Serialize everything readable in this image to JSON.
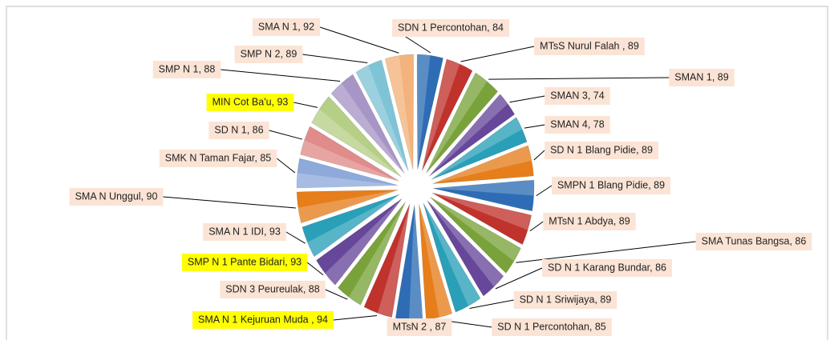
{
  "chart_data": {
    "type": "pie",
    "values": [
      84,
      89,
      89,
      74,
      78,
      89,
      89,
      89,
      86,
      86,
      89,
      85,
      87,
      94,
      88,
      93,
      93,
      90,
      85,
      86,
      93,
      88,
      89,
      92
    ],
    "value_labels": [
      "SDN 1 Percontohan, 84",
      "MTsS Nurul Falah , 89",
      "SMAN 1, 89",
      "SMAN 3, 74",
      "SMAN 4, 78",
      "SD N 1 Blang Pidie, 89",
      "SMPN 1 Blang Pidie, 89",
      "MTsN 1 Abdya, 89",
      "SMA Tunas Bangsa, 86",
      "SD N 1 Karang Bundar, 86",
      "SD N 1 Sriwijaya, 89",
      "SD N 1 Percontohan, 85",
      "MTsN 2 , 87",
      "SMA N 1 Kejuruan Muda , 94",
      "SDN 3 Peureulak, 88",
      "SMP N 1 Pante Bidari, 93",
      "SMA N 1 IDI, 93",
      "SMA N Unggul, 90",
      "SMK N Taman Fajar, 85",
      "SD N 1, 86",
      "MIN Cot Ba'u, 93",
      "SMP N 1, 88",
      "SMP N 2, 89",
      "SMA N 1, 92"
    ],
    "colors": [
      "#2e6db5",
      "#c0322c",
      "#79a33a",
      "#67479a",
      "#2a9fb8",
      "#e67e1c",
      "#2e6db5",
      "#c0322c",
      "#79a33a",
      "#67479a",
      "#2a9fb8",
      "#e67e1c",
      "#2e6db5",
      "#c0322c",
      "#79a33a",
      "#67479a",
      "#2a9fb8",
      "#e67e1c",
      "#8eaadb",
      "#df8c8a",
      "#b5cf86",
      "#a795c6",
      "#7fc4d6",
      "#f4b27c"
    ],
    "label_colors": [
      "#fbe4d5",
      "#fbe4d5",
      "#fbe4d5",
      "#fbe4d5",
      "#fbe4d5",
      "#fbe4d5",
      "#fbe4d5",
      "#fbe4d5",
      "#fbe4d5",
      "#fbe4d5",
      "#fbe4d5",
      "#fbe4d5",
      "#fbe4d5",
      "#ffff00",
      "#fbe4d5",
      "#ffff00",
      "#fbe4d5",
      "#fbe4d5",
      "#fbe4d5",
      "#fbe4d5",
      "#ffff00",
      "#fbe4d5",
      "#fbe4d5",
      "#fbe4d5"
    ]
  }
}
